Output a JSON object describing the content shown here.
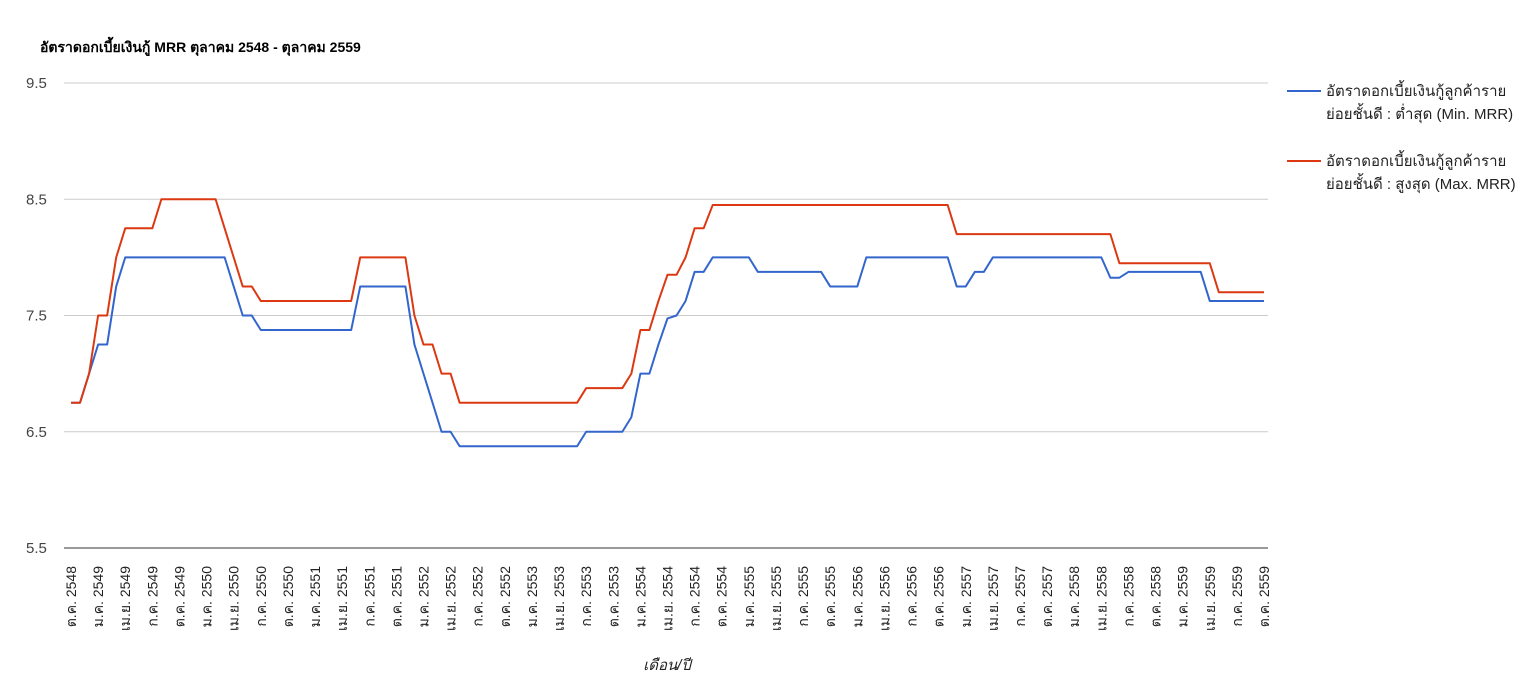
{
  "chart_data": {
    "type": "line",
    "title": "อัตราดอกเบี้ยเงินกู้ MRR ตุลาคม 2548 - ตุลาคม 2559",
    "x_label": "เดือน/ปี",
    "categories": [
      "ต.ค. 2548",
      null,
      null,
      "ม.ค. 2549",
      null,
      null,
      "เม.ย. 2549",
      null,
      null,
      "ก.ค. 2549",
      null,
      null,
      "ต.ค. 2549",
      null,
      null,
      "ม.ค. 2550",
      null,
      null,
      "เม.ย. 2550",
      null,
      null,
      "ก.ค. 2550",
      null,
      null,
      "ต.ค. 2550",
      null,
      null,
      "ม.ค. 2551",
      null,
      null,
      "เม.ย. 2551",
      null,
      null,
      "ก.ค. 2551",
      null,
      null,
      "ต.ค. 2551",
      null,
      null,
      "ม.ค. 2552",
      null,
      null,
      "เม.ย. 2552",
      null,
      null,
      "ก.ค. 2552",
      null,
      null,
      "ต.ค. 2552",
      null,
      null,
      "ม.ค. 2553",
      null,
      null,
      "เม.ย. 2553",
      null,
      null,
      "ก.ค. 2553",
      null,
      null,
      "ต.ค. 2553",
      null,
      null,
      "ม.ค. 2554",
      null,
      null,
      "เม.ย. 2554",
      null,
      null,
      "ก.ค. 2554",
      null,
      null,
      "ต.ค. 2554",
      null,
      null,
      "ม.ค. 2555",
      null,
      null,
      "เม.ย. 2555",
      null,
      null,
      "ก.ค. 2555",
      null,
      null,
      "ต.ค. 2555",
      null,
      null,
      "ม.ค. 2556",
      null,
      null,
      "เม.ย. 2556",
      null,
      null,
      "ก.ค. 2556",
      null,
      null,
      "ต.ค. 2556",
      null,
      null,
      "ม.ค. 2557",
      null,
      null,
      "เม.ย. 2557",
      null,
      null,
      "ก.ค. 2557",
      null,
      null,
      "ต.ค. 2557",
      null,
      null,
      "ม.ค. 2558",
      null,
      null,
      "เม.ย. 2558",
      null,
      null,
      "ก.ค. 2558",
      null,
      null,
      "ต.ค. 2558",
      null,
      null,
      "ม.ค. 2559",
      null,
      null,
      "เม.ย. 2559",
      null,
      null,
      "ก.ค. 2559",
      null,
      null,
      "ต.ค. 2559"
    ],
    "series": [
      {
        "name": "อัตราดอกเบี้ยเงินกู้ลูกค้ารายย่อยชั้นดี : ต่ำสุด (Min. MRR)",
        "color": "#3366cc",
        "values": [
          6.75,
          6.75,
          7,
          7.25,
          7.25,
          7.75,
          8,
          8,
          8,
          8,
          8,
          8,
          8,
          8,
          8,
          8,
          8,
          8,
          7.75,
          7.5,
          7.5,
          7.375,
          7.375,
          7.375,
          7.375,
          7.375,
          7.375,
          7.375,
          7.375,
          7.375,
          7.375,
          7.375,
          7.75,
          7.75,
          7.75,
          7.75,
          7.75,
          7.75,
          7.25,
          7,
          6.75,
          6.5,
          6.5,
          6.375,
          6.375,
          6.375,
          6.375,
          6.375,
          6.375,
          6.375,
          6.375,
          6.375,
          6.375,
          6.375,
          6.375,
          6.375,
          6.375,
          6.5,
          6.5,
          6.5,
          6.5,
          6.5,
          6.625,
          7,
          7,
          7.25,
          7.475,
          7.5,
          7.625,
          7.875,
          7.875,
          8,
          8,
          8,
          8,
          8,
          7.875,
          7.875,
          7.875,
          7.875,
          7.875,
          7.875,
          7.875,
          7.875,
          7.75,
          7.75,
          7.75,
          7.75,
          8,
          8,
          8,
          8,
          8,
          8,
          8,
          8,
          8,
          8,
          7.75,
          7.75,
          7.875,
          7.875,
          8,
          8,
          8,
          8,
          8,
          8,
          8,
          8,
          8,
          8,
          8,
          8,
          8,
          7.825,
          7.825,
          7.875,
          7.875,
          7.875,
          7.875,
          7.875,
          7.875,
          7.875,
          7.875,
          7.875,
          7.625,
          7.625,
          7.625,
          7.625,
          7.625,
          7.625,
          7.625
        ]
      },
      {
        "name": "อัตราดอกเบี้ยเงินกู้ลูกค้ารายย่อยชั้นดี : สูงสุด (Max. MRR)",
        "color": "#dc3912",
        "values": [
          6.75,
          6.75,
          7,
          7.5,
          7.5,
          8,
          8.25,
          8.25,
          8.25,
          8.25,
          8.5,
          8.5,
          8.5,
          8.5,
          8.5,
          8.5,
          8.5,
          8.25,
          8,
          7.75,
          7.75,
          7.625,
          7.625,
          7.625,
          7.625,
          7.625,
          7.625,
          7.625,
          7.625,
          7.625,
          7.625,
          7.625,
          8,
          8,
          8,
          8,
          8,
          8,
          7.5,
          7.25,
          7.25,
          7,
          7,
          6.75,
          6.75,
          6.75,
          6.75,
          6.75,
          6.75,
          6.75,
          6.75,
          6.75,
          6.75,
          6.75,
          6.75,
          6.75,
          6.75,
          6.875,
          6.875,
          6.875,
          6.875,
          6.875,
          7,
          7.375,
          7.375,
          7.625,
          7.85,
          7.85,
          8,
          8.25,
          8.25,
          8.45,
          8.45,
          8.45,
          8.45,
          8.45,
          8.45,
          8.45,
          8.45,
          8.45,
          8.45,
          8.45,
          8.45,
          8.45,
          8.45,
          8.45,
          8.45,
          8.45,
          8.45,
          8.45,
          8.45,
          8.45,
          8.45,
          8.45,
          8.45,
          8.45,
          8.45,
          8.45,
          8.2,
          8.2,
          8.2,
          8.2,
          8.2,
          8.2,
          8.2,
          8.2,
          8.2,
          8.2,
          8.2,
          8.2,
          8.2,
          8.2,
          8.2,
          8.2,
          8.2,
          8.2,
          7.95,
          7.95,
          7.95,
          7.95,
          7.95,
          7.95,
          7.95,
          7.95,
          7.95,
          7.95,
          7.95,
          7.7,
          7.7,
          7.7,
          7.7,
          7.7,
          7.7
        ]
      }
    ],
    "ylim": [
      5.5,
      9.5
    ],
    "yticks": [
      5.5,
      6.5,
      7.5,
      8.5,
      9.5
    ],
    "grid": true,
    "legend": "right"
  }
}
